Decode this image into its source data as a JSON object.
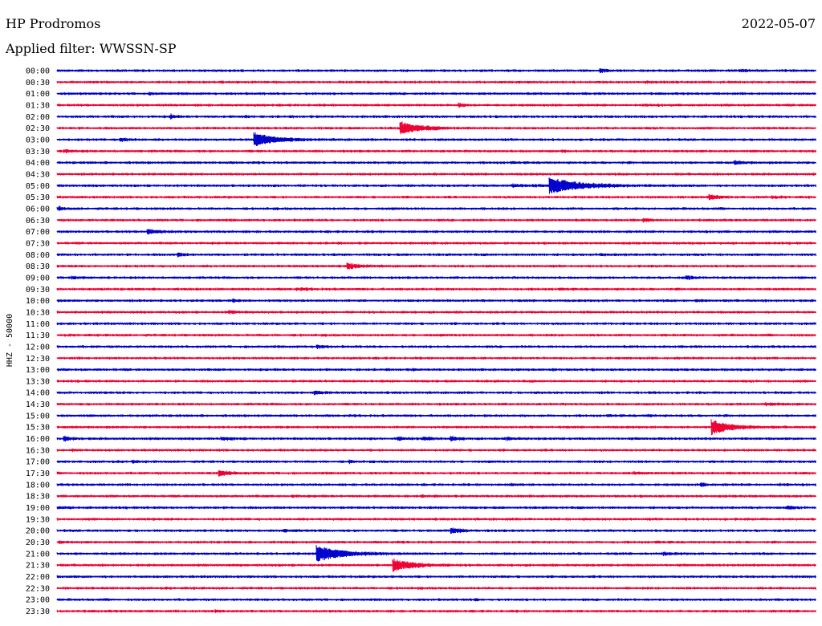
{
  "header": {
    "station": "HP Prodromos",
    "date": "2022-05-07",
    "filter": "Applied filter: WWSSN-SP"
  },
  "chart_data": {
    "type": "line",
    "title": "HP Prodromos",
    "ylabel": "HHZ - 50000",
    "row_labels": [
      "00:00",
      "00:30",
      "01:00",
      "01:30",
      "02:00",
      "02:30",
      "03:00",
      "03:30",
      "04:00",
      "04:30",
      "05:00",
      "05:30",
      "06:00",
      "06:30",
      "07:00",
      "07:30",
      "08:00",
      "08:30",
      "09:00",
      "09:30",
      "10:00",
      "10:30",
      "11:00",
      "11:30",
      "12:00",
      "12:30",
      "13:00",
      "13:30",
      "14:00",
      "14:30",
      "15:00",
      "15:30",
      "16:00",
      "16:30",
      "17:00",
      "17:30",
      "18:00",
      "18:30",
      "19:00",
      "19:30",
      "20:00",
      "20:30",
      "21:00",
      "21:30",
      "22:00",
      "22:30",
      "23:00",
      "23:30"
    ],
    "series_colors": [
      "#0000cc",
      "#ee0033"
    ],
    "trace_minutes": 30,
    "events": [
      {
        "row": 0,
        "minute": 21.5,
        "amp": 0.8,
        "dur": 0.6
      },
      {
        "row": 0,
        "minute": 27.0,
        "amp": 0.3,
        "dur": 1.0
      },
      {
        "row": 1,
        "minute": 23.3,
        "amp": 0.2,
        "dur": 2.0
      },
      {
        "row": 2,
        "minute": 3.7,
        "amp": 0.25,
        "dur": 0.8
      },
      {
        "row": 3,
        "minute": 15.9,
        "amp": 0.9,
        "dur": 0.5
      },
      {
        "row": 3,
        "minute": 23.3,
        "amp": 0.3,
        "dur": 0.5
      },
      {
        "row": 4,
        "minute": 4.5,
        "amp": 0.9,
        "dur": 0.4
      },
      {
        "row": 4,
        "minute": 7.5,
        "amp": 0.3,
        "dur": 0.4
      },
      {
        "row": 5,
        "minute": 13.6,
        "amp": 3.0,
        "dur": 2.0
      },
      {
        "row": 6,
        "minute": 2.5,
        "amp": 0.8,
        "dur": 0.8
      },
      {
        "row": 6,
        "minute": 7.8,
        "amp": 3.5,
        "dur": 2.0
      },
      {
        "row": 7,
        "minute": 0.3,
        "amp": 0.6,
        "dur": 0.8
      },
      {
        "row": 7,
        "minute": 20.0,
        "amp": 0.3,
        "dur": 0.5
      },
      {
        "row": 8,
        "minute": 26.8,
        "amp": 0.6,
        "dur": 1.0
      },
      {
        "row": 10,
        "minute": 18.0,
        "amp": 0.5,
        "dur": 2.0
      },
      {
        "row": 10,
        "minute": 19.5,
        "amp": 4.0,
        "dur": 3.0
      },
      {
        "row": 11,
        "minute": 25.8,
        "amp": 1.2,
        "dur": 0.8
      },
      {
        "row": 11,
        "minute": 28.3,
        "amp": 0.5,
        "dur": 0.4
      },
      {
        "row": 12,
        "minute": 0.1,
        "amp": 0.8,
        "dur": 0.4
      },
      {
        "row": 13,
        "minute": 23.2,
        "amp": 0.6,
        "dur": 0.6
      },
      {
        "row": 14,
        "minute": 3.6,
        "amp": 1.0,
        "dur": 1.2
      },
      {
        "row": 16,
        "minute": 4.8,
        "amp": 0.7,
        "dur": 0.6
      },
      {
        "row": 16,
        "minute": 21.5,
        "amp": 0.3,
        "dur": 1.5
      },
      {
        "row": 17,
        "minute": 11.5,
        "amp": 1.3,
        "dur": 1.2
      },
      {
        "row": 18,
        "minute": 0.6,
        "amp": 0.4,
        "dur": 0.8
      },
      {
        "row": 18,
        "minute": 24.9,
        "amp": 0.8,
        "dur": 0.6
      },
      {
        "row": 19,
        "minute": 9.5,
        "amp": 0.3,
        "dur": 1.5
      },
      {
        "row": 20,
        "minute": 7.0,
        "amp": 0.6,
        "dur": 0.3
      },
      {
        "row": 20,
        "minute": 25.3,
        "amp": 0.4,
        "dur": 0.8
      },
      {
        "row": 21,
        "minute": 6.8,
        "amp": 0.6,
        "dur": 0.8
      },
      {
        "row": 24,
        "minute": 10.3,
        "amp": 0.7,
        "dur": 0.6
      },
      {
        "row": 26,
        "minute": 14.0,
        "amp": 0.3,
        "dur": 0.4
      },
      {
        "row": 26,
        "minute": 19.5,
        "amp": 0.3,
        "dur": 0.4
      },
      {
        "row": 28,
        "minute": 10.2,
        "amp": 0.8,
        "dur": 0.8
      },
      {
        "row": 28,
        "minute": 23.5,
        "amp": 0.3,
        "dur": 0.6
      },
      {
        "row": 29,
        "minute": 28.0,
        "amp": 0.4,
        "dur": 1.5
      },
      {
        "row": 30,
        "minute": 23.4,
        "amp": 0.4,
        "dur": 0.4
      },
      {
        "row": 31,
        "minute": 25.9,
        "amp": 3.5,
        "dur": 2.0
      },
      {
        "row": 32,
        "minute": 0.3,
        "amp": 1.0,
        "dur": 0.8
      },
      {
        "row": 32,
        "minute": 6.5,
        "amp": 0.4,
        "dur": 1.5
      },
      {
        "row": 32,
        "minute": 13.5,
        "amp": 0.6,
        "dur": 1.0
      },
      {
        "row": 32,
        "minute": 14.5,
        "amp": 0.7,
        "dur": 1.0
      },
      {
        "row": 32,
        "minute": 15.6,
        "amp": 0.8,
        "dur": 0.8
      },
      {
        "row": 32,
        "minute": 17.8,
        "amp": 0.5,
        "dur": 0.8
      },
      {
        "row": 33,
        "minute": 0.6,
        "amp": 0.4,
        "dur": 0.6
      },
      {
        "row": 34,
        "minute": 3.0,
        "amp": 0.5,
        "dur": 0.3
      },
      {
        "row": 34,
        "minute": 11.6,
        "amp": 0.6,
        "dur": 0.3
      },
      {
        "row": 35,
        "minute": 6.4,
        "amp": 1.2,
        "dur": 1.2
      },
      {
        "row": 35,
        "minute": 22.8,
        "amp": 0.3,
        "dur": 1.5
      },
      {
        "row": 36,
        "minute": 18.0,
        "amp": 0.4,
        "dur": 0.4
      },
      {
        "row": 36,
        "minute": 25.5,
        "amp": 0.7,
        "dur": 0.6
      },
      {
        "row": 36,
        "minute": 28.5,
        "amp": 0.3,
        "dur": 1.0
      },
      {
        "row": 37,
        "minute": 9.3,
        "amp": 0.4,
        "dur": 0.5
      },
      {
        "row": 37,
        "minute": 14.4,
        "amp": 0.3,
        "dur": 0.6
      },
      {
        "row": 38,
        "minute": 28.9,
        "amp": 0.8,
        "dur": 0.5
      },
      {
        "row": 38,
        "minute": 0.1,
        "amp": 0.3,
        "dur": 0.8
      },
      {
        "row": 40,
        "minute": 9.0,
        "amp": 0.4,
        "dur": 0.8
      },
      {
        "row": 40,
        "minute": 15.6,
        "amp": 1.2,
        "dur": 1.0
      },
      {
        "row": 41,
        "minute": 0.1,
        "amp": 0.3,
        "dur": 0.5
      },
      {
        "row": 42,
        "minute": 10.3,
        "amp": 4.0,
        "dur": 2.5
      },
      {
        "row": 42,
        "minute": 24.0,
        "amp": 0.5,
        "dur": 0.8
      },
      {
        "row": 43,
        "minute": 13.3,
        "amp": 3.0,
        "dur": 2.0
      },
      {
        "row": 46,
        "minute": 16.5,
        "amp": 0.4,
        "dur": 0.5
      },
      {
        "row": 47,
        "minute": 6.3,
        "amp": 0.4,
        "dur": 0.5
      }
    ]
  }
}
